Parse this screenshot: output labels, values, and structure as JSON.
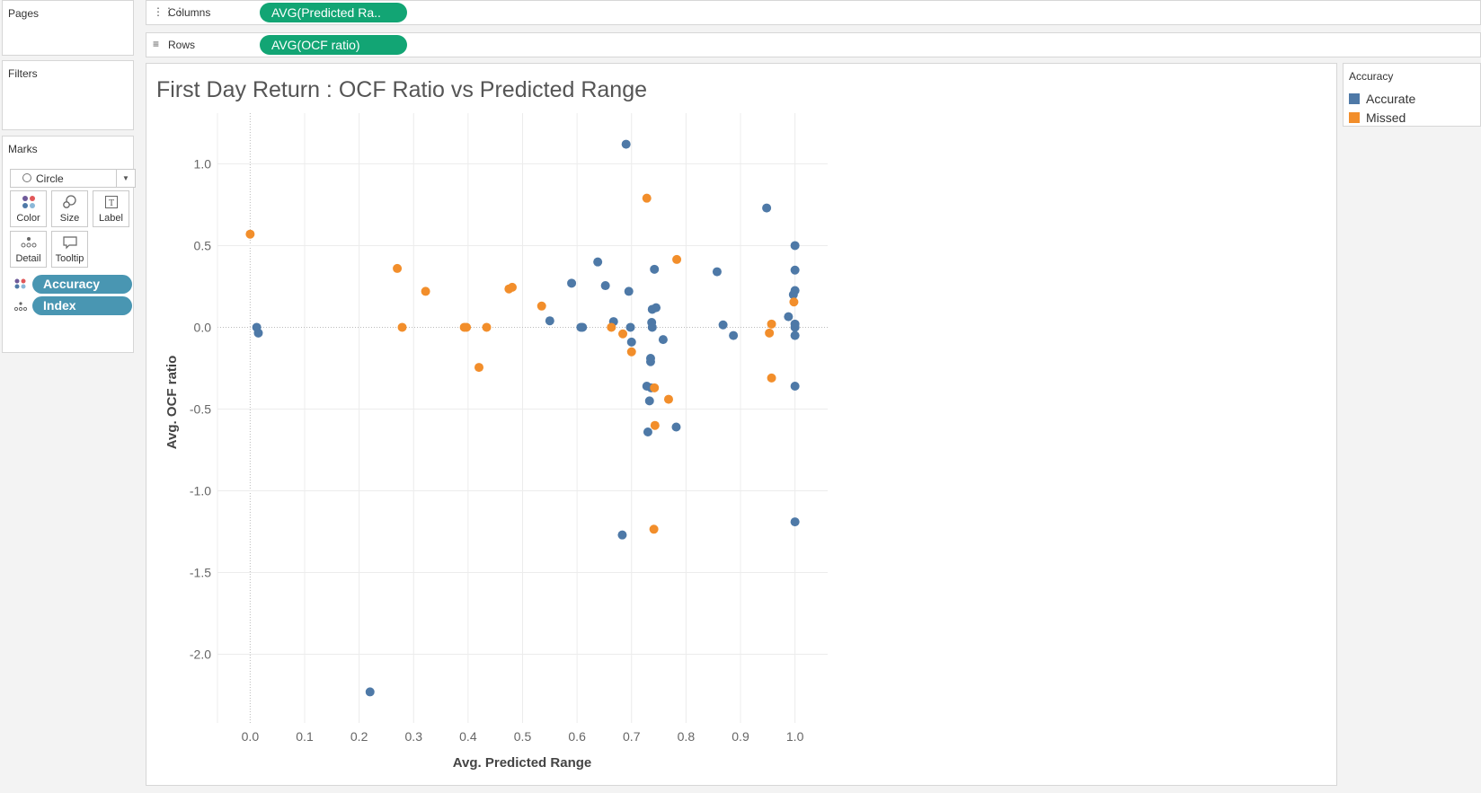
{
  "sidebar": {
    "pages_title": "Pages",
    "filters_title": "Filters",
    "marks_title": "Marks",
    "mark_type": "Circle",
    "mark_buttons": [
      {
        "label": "Color",
        "icon": "color-dots-icon"
      },
      {
        "label": "Size",
        "icon": "size-icon"
      },
      {
        "label": "Label",
        "icon": "label-text-icon"
      },
      {
        "label": "Detail",
        "icon": "detail-dots-icon"
      },
      {
        "label": "Tooltip",
        "icon": "tooltip-icon"
      }
    ],
    "mark_fields": [
      {
        "label": "Accuracy",
        "icon": "color-dots-icon"
      },
      {
        "label": "Index",
        "icon": "detail-dots-icon"
      }
    ]
  },
  "shelves": {
    "columns_label": "Columns",
    "columns_pill": "AVG(Predicted Ra..",
    "rows_label": "Rows",
    "rows_pill": "AVG(OCF ratio)"
  },
  "legend": {
    "title": "Accuracy",
    "items": [
      {
        "label": "Accurate",
        "color": "#4e79a7"
      },
      {
        "label": "Missed",
        "color": "#f28e2b"
      }
    ]
  },
  "chart_data": {
    "type": "scatter",
    "title": "First Day Return : OCF Ratio vs Predicted Range",
    "xlabel": "Avg. Predicted Range",
    "ylabel": "Avg. OCF ratio",
    "xlim": [
      -0.06,
      1.06
    ],
    "ylim": [
      -2.42,
      1.31
    ],
    "xticks": [
      "0.0",
      "0.1",
      "0.2",
      "0.3",
      "0.4",
      "0.5",
      "0.6",
      "0.7",
      "0.8",
      "0.9",
      "1.0"
    ],
    "yticks": [
      "1.0",
      "0.5",
      "0.0",
      "-0.5",
      "-1.0",
      "-1.5",
      "-2.0"
    ],
    "grid": true,
    "legend_position": "right",
    "series": [
      {
        "name": "Accurate",
        "color": "#4e79a7",
        "points": [
          [
            0.012,
            0.0
          ],
          [
            0.015,
            -0.035
          ],
          [
            0.22,
            -2.23
          ],
          [
            0.55,
            0.04
          ],
          [
            0.59,
            0.27
          ],
          [
            0.607,
            0.0
          ],
          [
            0.61,
            0.0
          ],
          [
            0.638,
            0.4
          ],
          [
            0.652,
            0.255
          ],
          [
            0.667,
            0.035
          ],
          [
            0.69,
            1.12
          ],
          [
            0.695,
            0.22
          ],
          [
            0.698,
            0.0
          ],
          [
            0.7,
            -0.09
          ],
          [
            0.728,
            -0.36
          ],
          [
            0.73,
            -0.64
          ],
          [
            0.733,
            -0.45
          ],
          [
            0.735,
            -0.19
          ],
          [
            0.735,
            -0.21
          ],
          [
            0.736,
            -0.37
          ],
          [
            0.737,
            0.03
          ],
          [
            0.738,
            0.0
          ],
          [
            0.738,
            0.11
          ],
          [
            0.742,
            0.355
          ],
          [
            0.745,
            0.12
          ],
          [
            0.758,
            -0.075
          ],
          [
            0.683,
            -1.27
          ],
          [
            0.782,
            -0.61
          ],
          [
            0.857,
            0.34
          ],
          [
            0.868,
            0.015
          ],
          [
            0.887,
            -0.05
          ],
          [
            0.948,
            0.73
          ],
          [
            0.988,
            0.065
          ],
          [
            0.997,
            0.2
          ],
          [
            1.0,
            0.5
          ],
          [
            1.0,
            0.35
          ],
          [
            1.0,
            0.225
          ],
          [
            1.0,
            0.02
          ],
          [
            1.0,
            0.0
          ],
          [
            1.0,
            -0.05
          ],
          [
            1.0,
            -0.36
          ],
          [
            1.0,
            -1.19
          ]
        ]
      },
      {
        "name": "Missed",
        "color": "#f28e2b",
        "points": [
          [
            0.0,
            0.57
          ],
          [
            0.27,
            0.36
          ],
          [
            0.279,
            0.0
          ],
          [
            0.322,
            0.22
          ],
          [
            0.393,
            0.0
          ],
          [
            0.397,
            0.0
          ],
          [
            0.42,
            -0.245
          ],
          [
            0.434,
            0.0
          ],
          [
            0.475,
            0.235
          ],
          [
            0.481,
            0.245
          ],
          [
            0.535,
            0.13
          ],
          [
            0.663,
            0.0
          ],
          [
            0.684,
            -0.04
          ],
          [
            0.7,
            -0.15
          ],
          [
            0.728,
            0.79
          ],
          [
            0.742,
            -0.37
          ],
          [
            0.743,
            -0.6
          ],
          [
            0.741,
            -1.235
          ],
          [
            0.768,
            -0.44
          ],
          [
            0.783,
            0.415
          ],
          [
            0.953,
            -0.035
          ],
          [
            0.957,
            0.02
          ],
          [
            0.957,
            -0.31
          ],
          [
            0.998,
            0.155
          ]
        ]
      }
    ]
  }
}
